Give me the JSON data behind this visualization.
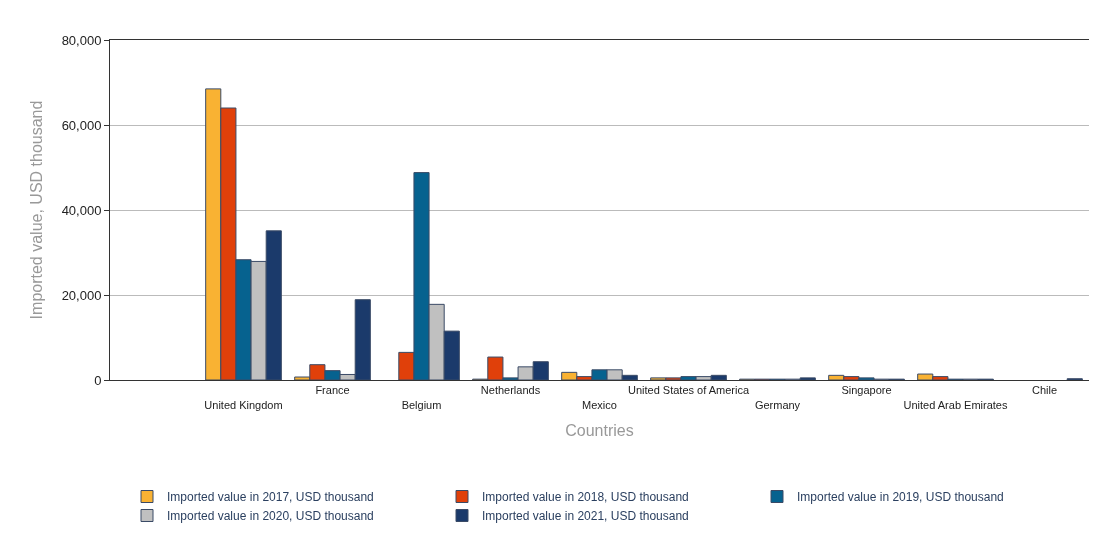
{
  "chart_data": {
    "type": "bar",
    "xlabel": "Countries",
    "ylabel": "Imported value, USD thousand",
    "categories": [
      "United Kingdom",
      "France",
      "Belgium",
      "Netherlands",
      "Mexico",
      "United States of America",
      "Germany",
      "Singapore",
      "United Arab Emirates",
      "Chile"
    ],
    "series": [
      {
        "name": "Imported value in 2017, USD thousand",
        "color": "#f9b233",
        "values": [
          68500,
          700,
          null,
          200,
          1800,
          500,
          200,
          1100,
          1400,
          null
        ]
      },
      {
        "name": "Imported value in 2018, USD thousand",
        "color": "#e0400a",
        "values": [
          64000,
          3600,
          6500,
          5400,
          800,
          500,
          200,
          800,
          800,
          null
        ]
      },
      {
        "name": "Imported value in 2019, USD thousand",
        "color": "#06628f",
        "values": [
          28300,
          2200,
          48800,
          500,
          2400,
          800,
          200,
          500,
          200,
          null
        ]
      },
      {
        "name": "Imported value in 2020, USD thousand",
        "color": "#c0c0c0",
        "values": [
          27900,
          1300,
          17800,
          3100,
          2400,
          800,
          200,
          200,
          200,
          null
        ]
      },
      {
        "name": "Imported value in 2021, USD thousand",
        "color": "#1b3a6b",
        "values": [
          35100,
          18900,
          11500,
          4300,
          1100,
          1100,
          500,
          200,
          200,
          300
        ]
      }
    ],
    "ylim": [
      0,
      80000
    ],
    "yticks": [
      {
        "value": 0,
        "label": "0"
      },
      {
        "value": 20000,
        "label": "20,000"
      },
      {
        "value": 40000,
        "label": "40,000"
      },
      {
        "value": 60000,
        "label": "60,000"
      },
      {
        "value": 80000,
        "label": "80,000"
      }
    ],
    "grid": "y",
    "legend": "bottom"
  }
}
